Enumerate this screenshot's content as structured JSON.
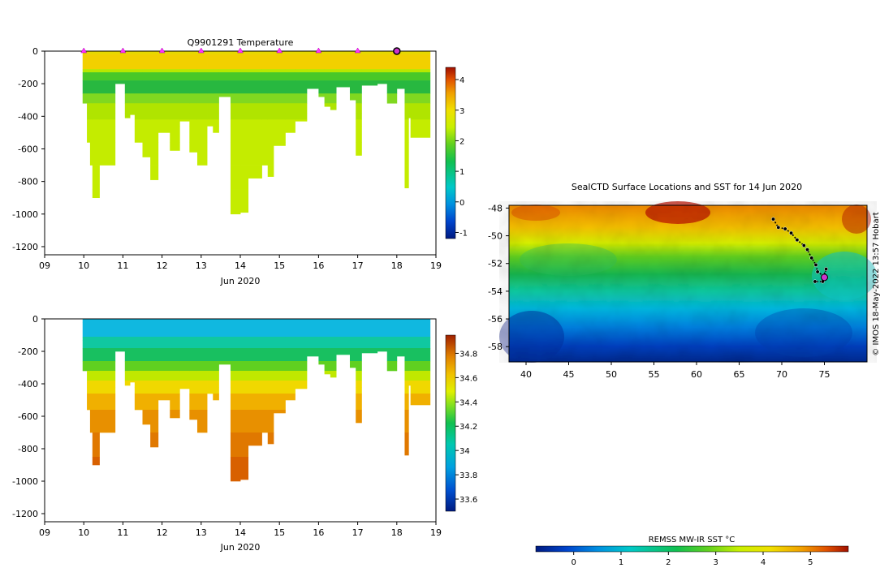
{
  "chart_data": [
    {
      "id": "temperature",
      "type": "heatmap",
      "title": "Q9901291  Temperature",
      "xlabel": "Jun 2020",
      "ylabel": "",
      "x_ticks": [
        "09",
        "10",
        "11",
        "12",
        "13",
        "14",
        "15",
        "16",
        "17",
        "18",
        "19"
      ],
      "x_range": [
        9,
        19
      ],
      "y_ticks": [
        0,
        -200,
        -400,
        -600,
        -800,
        -1000,
        -1200
      ],
      "y_range": [
        -1250,
        0
      ],
      "colorbar": {
        "min": -1.2,
        "max": 4.4,
        "ticks": [
          -1,
          0,
          1,
          2,
          3,
          4
        ],
        "tick_labels": [
          "-1",
          "0",
          "1",
          "2",
          "3",
          "4"
        ]
      },
      "surface_profile_markers": [
        10,
        11,
        12,
        13,
        14,
        15,
        16,
        17
      ],
      "current_day_marker": 18,
      "profile_depths": [
        {
          "t0": 9.97,
          "t1": 10.08,
          "depth": 320
        },
        {
          "t0": 10.08,
          "t1": 10.16,
          "depth": 560
        },
        {
          "t0": 10.16,
          "t1": 10.22,
          "depth": 700
        },
        {
          "t0": 10.22,
          "t1": 10.4,
          "depth": 900
        },
        {
          "t0": 10.4,
          "t1": 10.8,
          "depth": 700
        },
        {
          "t0": 10.8,
          "t1": 11.05,
          "depth": 200
        },
        {
          "t0": 11.05,
          "t1": 11.18,
          "depth": 410
        },
        {
          "t0": 11.18,
          "t1": 11.3,
          "depth": 390
        },
        {
          "t0": 11.3,
          "t1": 11.5,
          "depth": 560
        },
        {
          "t0": 11.5,
          "t1": 11.7,
          "depth": 650
        },
        {
          "t0": 11.7,
          "t1": 11.9,
          "depth": 790
        },
        {
          "t0": 11.9,
          "t1": 12.2,
          "depth": 500
        },
        {
          "t0": 12.2,
          "t1": 12.45,
          "depth": 610
        },
        {
          "t0": 12.45,
          "t1": 12.7,
          "depth": 430
        },
        {
          "t0": 12.7,
          "t1": 12.9,
          "depth": 620
        },
        {
          "t0": 12.9,
          "t1": 13.15,
          "depth": 700
        },
        {
          "t0": 13.15,
          "t1": 13.3,
          "depth": 460
        },
        {
          "t0": 13.3,
          "t1": 13.45,
          "depth": 500
        },
        {
          "t0": 13.45,
          "t1": 13.75,
          "depth": 280
        },
        {
          "t0": 13.75,
          "t1": 14.0,
          "depth": 1000
        },
        {
          "t0": 14.0,
          "t1": 14.2,
          "depth": 990
        },
        {
          "t0": 14.2,
          "t1": 14.55,
          "depth": 780
        },
        {
          "t0": 14.55,
          "t1": 14.7,
          "depth": 700
        },
        {
          "t0": 14.7,
          "t1": 14.85,
          "depth": 770
        },
        {
          "t0": 14.85,
          "t1": 15.15,
          "depth": 580
        },
        {
          "t0": 15.15,
          "t1": 15.4,
          "depth": 500
        },
        {
          "t0": 15.4,
          "t1": 15.7,
          "depth": 430
        },
        {
          "t0": 15.7,
          "t1": 16.0,
          "depth": 230
        },
        {
          "t0": 16.0,
          "t1": 16.15,
          "depth": 280
        },
        {
          "t0": 16.15,
          "t1": 16.3,
          "depth": 340
        },
        {
          "t0": 16.3,
          "t1": 16.45,
          "depth": 360
        },
        {
          "t0": 16.45,
          "t1": 16.8,
          "depth": 220
        },
        {
          "t0": 16.8,
          "t1": 16.95,
          "depth": 300
        },
        {
          "t0": 16.95,
          "t1": 17.1,
          "depth": 640
        },
        {
          "t0": 17.1,
          "t1": 17.5,
          "depth": 210
        },
        {
          "t0": 17.5,
          "t1": 17.75,
          "depth": 200
        },
        {
          "t0": 17.75,
          "t1": 18.0,
          "depth": 320
        },
        {
          "t0": 18.0,
          "t1": 18.2,
          "depth": 230
        },
        {
          "t0": 18.2,
          "t1": 18.3,
          "depth": 840
        },
        {
          "t0": 18.3,
          "t1": 18.35,
          "depth": 410
        },
        {
          "t0": 18.35,
          "t1": 18.85,
          "depth": 530
        }
      ],
      "value_description": "Warm (~3.0 C) surface mixed layer 0-120 m, a cold green minimum (~1.8 C) at 130-300 m, and ~2.5 C deep water below."
    },
    {
      "id": "salinity",
      "type": "heatmap",
      "title": "",
      "xlabel": "Jun 2020",
      "x_ticks": [
        "09",
        "10",
        "11",
        "12",
        "13",
        "14",
        "15",
        "16",
        "17",
        "18",
        "19"
      ],
      "x_range": [
        9,
        19
      ],
      "y_ticks": [
        0,
        -200,
        -400,
        -600,
        -800,
        -1000,
        -1200
      ],
      "y_range": [
        -1250,
        0
      ],
      "colorbar": {
        "min": 33.5,
        "max": 34.95,
        "ticks": [
          33.6,
          33.8,
          34,
          34.2,
          34.4,
          34.6,
          34.8
        ],
        "tick_labels": [
          "33.6",
          "33.8",
          "34",
          "34.2",
          "34.4",
          "34.6",
          "34.8"
        ]
      },
      "value_description": "Fresh (~33.9) surface layer to ~130 m, rising through 34.1 near 250 m to ~34.7 by 900-1000 m."
    },
    {
      "id": "sst-map",
      "type": "heatmap",
      "title": "SealCTD Surface Locations and SST for 14 Jun 2020",
      "credit": "© IMOS 18-May-2022 13:57 Hobart",
      "x_ticks": [
        "40",
        "45",
        "50",
        "55",
        "60",
        "65",
        "70",
        "75"
      ],
      "x_range": [
        38,
        80
      ],
      "y_ticks": [
        "-48",
        "-50",
        "-52",
        "-54",
        "-56",
        "-58"
      ],
      "y_range": [
        -59.1,
        -47.8
      ],
      "colorbar": {
        "label": "REMSS MW-IR SST °C",
        "min": -0.8,
        "max": 5.8,
        "ticks": [
          0,
          1,
          2,
          3,
          4,
          5
        ],
        "tick_labels": [
          "0",
          "1",
          "2",
          "3",
          "4",
          "5"
        ]
      },
      "track": [
        {
          "lon": 69.0,
          "lat": -48.8
        },
        {
          "lon": 69.6,
          "lat": -49.4
        },
        {
          "lon": 70.4,
          "lat": -49.5
        },
        {
          "lon": 71.1,
          "lat": -49.8
        },
        {
          "lon": 71.8,
          "lat": -50.3
        },
        {
          "lon": 72.6,
          "lat": -50.7
        },
        {
          "lon": 73.0,
          "lat": -51.0
        },
        {
          "lon": 73.5,
          "lat": -51.6
        },
        {
          "lon": 74.0,
          "lat": -52.1
        },
        {
          "lon": 74.2,
          "lat": -52.6
        },
        {
          "lon": 74.9,
          "lat": -52.9
        },
        {
          "lon": 75.2,
          "lat": -52.4
        },
        {
          "lon": 74.8,
          "lat": -53.3
        },
        {
          "lon": 73.9,
          "lat": -53.3
        }
      ],
      "current_position": {
        "lon": 75.0,
        "lat": -53.0
      }
    }
  ],
  "colors": {
    "marker_fill": "#ff33ff",
    "current_marker": "#cc33cc",
    "axis": "#000000"
  }
}
